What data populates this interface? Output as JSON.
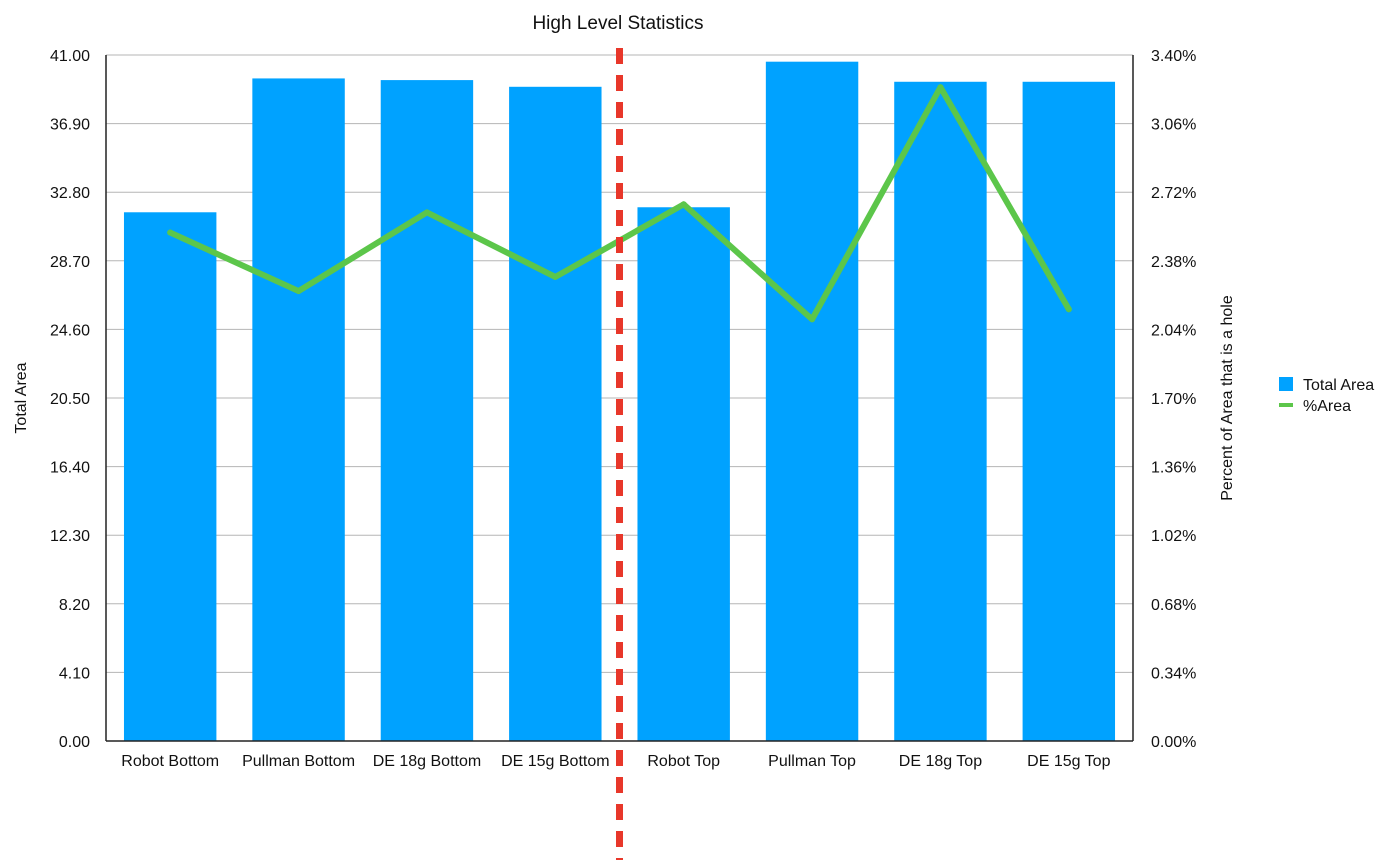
{
  "chart_data": {
    "type": "bar",
    "title": "High Level Statistics",
    "categories": [
      "Robot Bottom",
      "Pullman Bottom",
      "DE 18g Bottom",
      "DE 15g Bottom",
      "Robot Top",
      "Pullman Top",
      "DE 18g Top",
      "DE 15g Top"
    ],
    "series": [
      {
        "name": "Total Area",
        "type": "bar",
        "axis": "left",
        "color": "#00a2ff",
        "values": [
          31.6,
          39.6,
          39.5,
          39.1,
          31.9,
          40.6,
          39.4,
          39.4
        ]
      },
      {
        "name": "%Area",
        "type": "line",
        "axis": "right",
        "color": "#5cc64a",
        "values": [
          2.52,
          2.23,
          2.62,
          2.3,
          2.66,
          2.09,
          3.24,
          2.14
        ]
      }
    ],
    "ylabel": "Total Area",
    "ylabel_right": "Percent of Area that is a hole",
    "ylim": [
      0,
      41
    ],
    "ylim_right": [
      0,
      3.4
    ],
    "yticks": [
      "0.00",
      "4.10",
      "8.20",
      "12.30",
      "16.40",
      "20.50",
      "24.60",
      "28.70",
      "32.80",
      "36.90",
      "41.00"
    ],
    "yticks_right": [
      "0.00%",
      "0.34%",
      "0.68%",
      "1.02%",
      "1.36%",
      "1.70%",
      "2.04%",
      "2.38%",
      "2.72%",
      "3.06%",
      "3.40%"
    ],
    "divider_after_category": 4,
    "divider_color": "#e8372a",
    "grid": true,
    "legend": "right"
  }
}
